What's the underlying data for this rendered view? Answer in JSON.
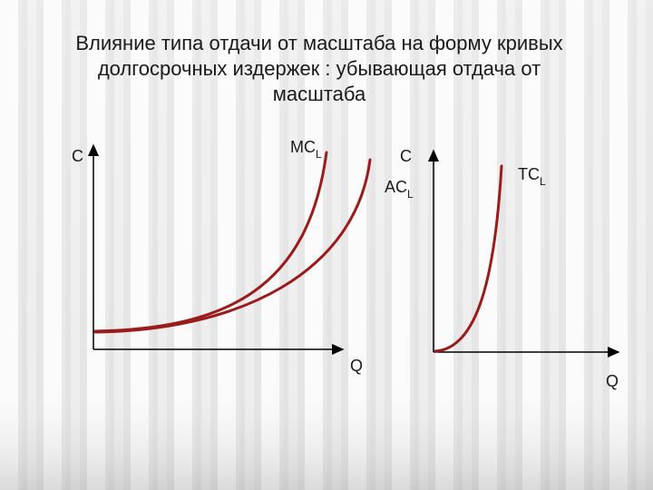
{
  "title": {
    "lines": [
      "Влияние типа отдачи от масштаба на форму кривых",
      "долгосрочных издержек : убывающая отдача от",
      "масштаба"
    ]
  },
  "left_graph": {
    "y_axis": "C",
    "x_axis": "Q",
    "curves": [
      {
        "main": "MC",
        "sub": "L"
      },
      {
        "main": "AC",
        "sub": "L"
      }
    ]
  },
  "right_graph": {
    "y_axis": "C",
    "x_axis": "Q",
    "curves": [
      {
        "main": "TC",
        "sub": "L"
      }
    ]
  }
}
